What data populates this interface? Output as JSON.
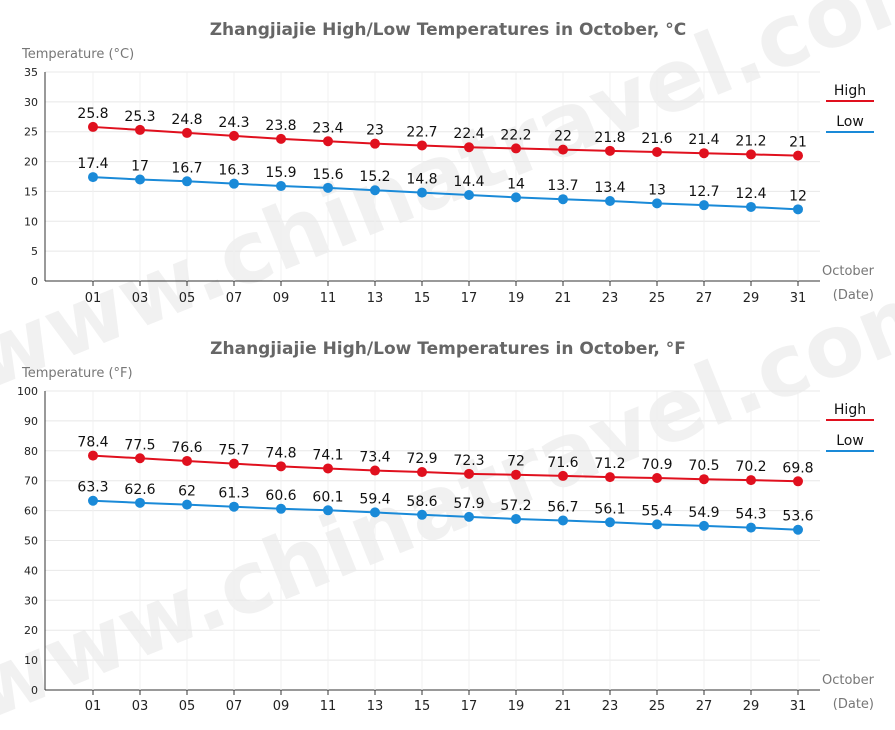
{
  "chart_data": [
    {
      "type": "line",
      "title": "Zhangjiajie High/Low Temperatures in October, °C",
      "ylabel": "Temperature (°C)",
      "xlabel_month": "October",
      "xlabel_unit": "(Date)",
      "ylim": [
        0,
        35
      ],
      "yticks": [
        0,
        5,
        10,
        15,
        20,
        25,
        30,
        35
      ],
      "grid": true,
      "legend_position": "top-right",
      "x": [
        "01",
        "03",
        "05",
        "07",
        "09",
        "11",
        "13",
        "15",
        "17",
        "19",
        "21",
        "23",
        "25",
        "27",
        "29",
        "31"
      ],
      "series": [
        {
          "name": "High",
          "color": "#e0101e",
          "values": [
            25.8,
            25.3,
            24.8,
            24.3,
            23.8,
            23.4,
            23,
            22.7,
            22.4,
            22.2,
            22,
            21.8,
            21.6,
            21.4,
            21.2,
            21
          ]
        },
        {
          "name": "Low",
          "color": "#1a8ad8",
          "values": [
            17.4,
            17,
            16.7,
            16.3,
            15.9,
            15.6,
            15.2,
            14.8,
            14.4,
            14,
            13.7,
            13.4,
            13,
            12.7,
            12.4,
            12
          ]
        }
      ]
    },
    {
      "type": "line",
      "title": "Zhangjiajie High/Low Temperatures in October, °F",
      "ylabel": "Temperature (°F)",
      "xlabel_month": "October",
      "xlabel_unit": "(Date)",
      "ylim": [
        0,
        100
      ],
      "yticks": [
        0,
        10,
        20,
        30,
        40,
        50,
        60,
        70,
        80,
        90,
        100
      ],
      "grid": true,
      "legend_position": "top-right",
      "x": [
        "01",
        "03",
        "05",
        "07",
        "09",
        "11",
        "13",
        "15",
        "17",
        "19",
        "21",
        "23",
        "25",
        "27",
        "29",
        "31"
      ],
      "series": [
        {
          "name": "High",
          "color": "#e0101e",
          "values": [
            78.4,
            77.5,
            76.6,
            75.7,
            74.8,
            74.1,
            73.4,
            72.9,
            72.3,
            72,
            71.6,
            71.2,
            70.9,
            70.5,
            70.2,
            69.8
          ]
        },
        {
          "name": "Low",
          "color": "#1a8ad8",
          "values": [
            63.3,
            62.6,
            62,
            61.3,
            60.6,
            60.1,
            59.4,
            58.6,
            57.9,
            57.2,
            56.7,
            56.1,
            55.4,
            54.9,
            54.3,
            53.6
          ]
        }
      ]
    }
  ],
  "watermark": "www.chinatravel.com"
}
